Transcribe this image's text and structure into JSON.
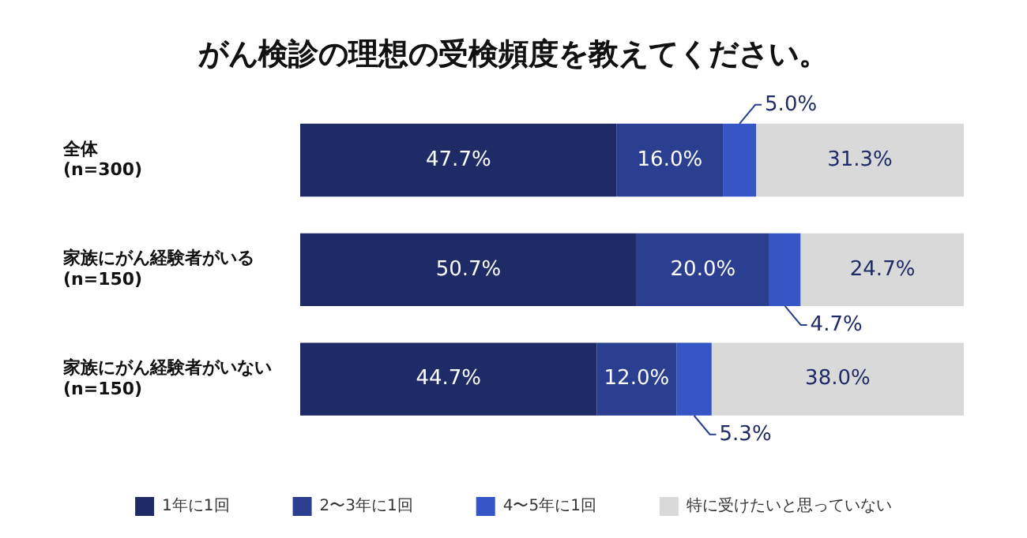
{
  "chart_data": {
    "type": "bar",
    "orientation": "horizontal",
    "stacked": true,
    "title": "がん検診の理想の受検頻度を教えてください。",
    "categories": [
      "全体\n(n=300)",
      "家族にがん経験者がいる\n(n=150)",
      "家族にがん経験者がいない\n(n=150)"
    ],
    "series": [
      {
        "name": "1年に1回",
        "color": "#1f2b66",
        "values": [
          47.7,
          50.7,
          44.7
        ],
        "value_labels": [
          "47.7%",
          "50.7%",
          "44.7%"
        ]
      },
      {
        "name": "2〜3年に1回",
        "color": "#2a3f90",
        "values": [
          16.0,
          20.0,
          12.0
        ],
        "value_labels": [
          "16.0%",
          "20.0%",
          "12.0%"
        ]
      },
      {
        "name": "4〜5年に1回",
        "color": "#3556c4",
        "values": [
          5.0,
          4.7,
          5.3
        ],
        "value_labels": [
          "5.0%",
          "4.7%",
          "5.3%"
        ]
      },
      {
        "name": "特に受けたいと思っていない",
        "color": "#d9d9d9",
        "values": [
          31.3,
          24.7,
          38.0
        ],
        "value_labels": [
          "31.3%",
          "24.7%",
          "38.0%"
        ]
      }
    ],
    "xlim": [
      0,
      100
    ],
    "tick_labels": "y",
    "legend": "bottom"
  }
}
